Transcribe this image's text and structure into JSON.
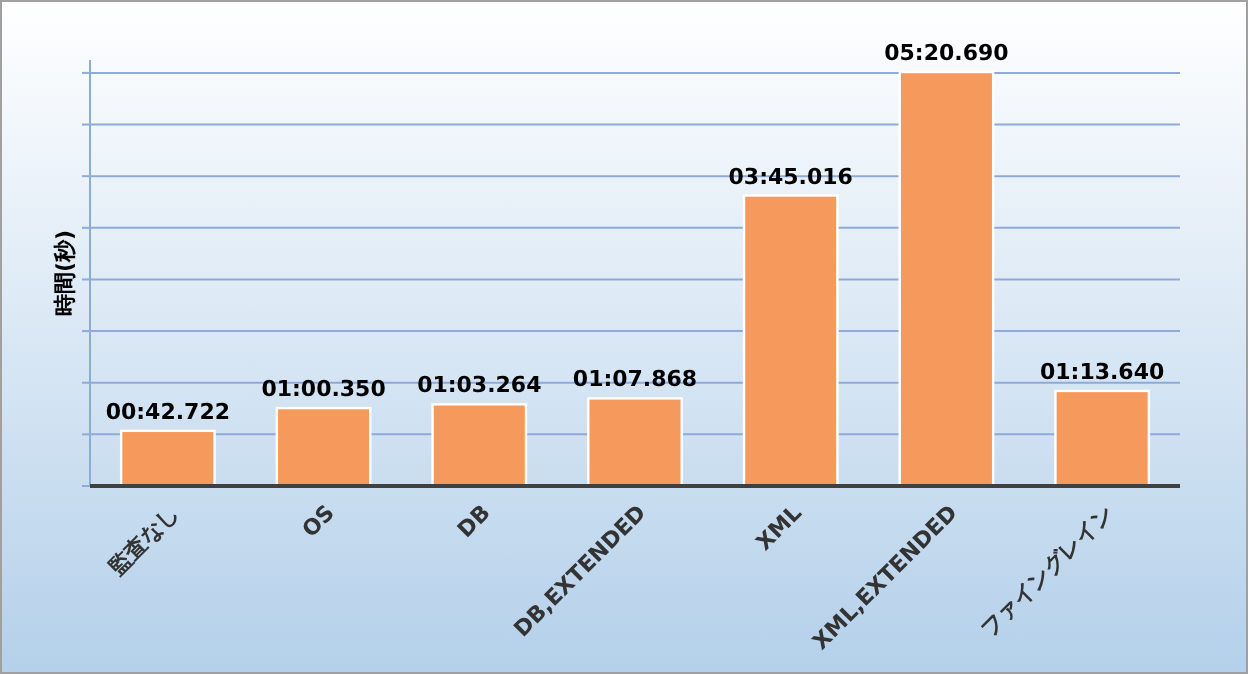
{
  "chart_data": {
    "type": "bar",
    "ylabel": "時間(秒)",
    "categories": [
      "監査なし",
      "OS",
      "DB",
      "DB,EXTENDED",
      "XML",
      "XML,EXTENDED",
      "ファイングレイン"
    ],
    "values": [
      42.722,
      60.35,
      63.264,
      67.868,
      225.016,
      320.69,
      73.64
    ],
    "value_labels": [
      "00:42.722",
      "01:00.350",
      "01:03.264",
      "01:07.868",
      "03:45.016",
      "05:20.690",
      "01:13.640"
    ],
    "color": "#f59a5c",
    "ylim": [
      0,
      330
    ],
    "yticks": [
      {
        "value": 0,
        "label": null
      },
      {
        "value": 40,
        "label": null
      },
      {
        "value": 80,
        "label": null
      },
      {
        "value": 120,
        "label": null
      },
      {
        "value": 160,
        "label": null
      },
      {
        "value": 200,
        "label": null
      },
      {
        "value": 240,
        "label": null
      },
      {
        "value": 280,
        "label": null
      },
      {
        "value": 320,
        "label": null
      }
    ],
    "tick_labels": "x",
    "grid": "y"
  }
}
